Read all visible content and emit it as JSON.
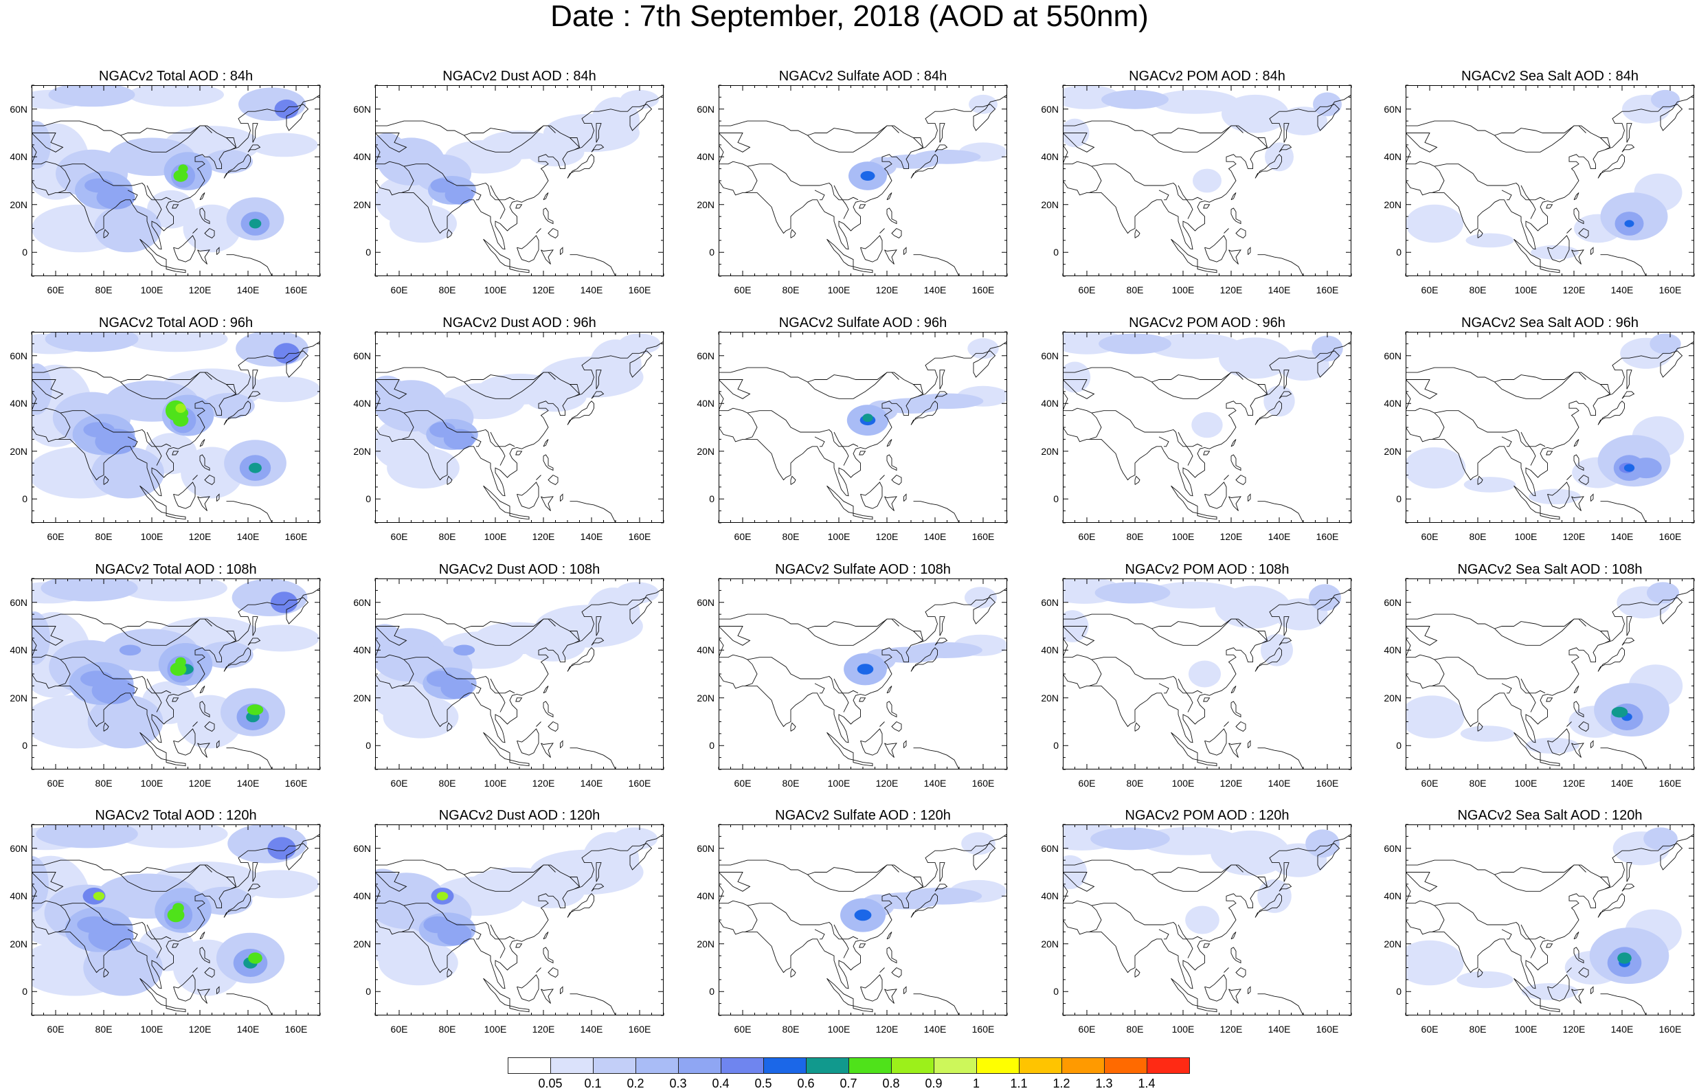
{
  "title": "Date : 7th September, 2018 (AOD at 550nm)",
  "lat_labels": [
    "60N",
    "40N",
    "20N",
    "0"
  ],
  "lon_labels": [
    "60E",
    "80E",
    "100E",
    "120E",
    "140E",
    "160E"
  ],
  "panels": [
    {
      "title": "NGACv2 Total AOD : 84h",
      "species": "total",
      "hour": "84h"
    },
    {
      "title": "NGACv2 Dust AOD : 84h",
      "species": "dust",
      "hour": "84h"
    },
    {
      "title": "NGACv2 Sulfate AOD : 84h",
      "species": "sulfate",
      "hour": "84h"
    },
    {
      "title": "NGACv2 POM AOD : 84h",
      "species": "pom",
      "hour": "84h"
    },
    {
      "title": "NGACv2 Sea Salt AOD : 84h",
      "species": "seasalt",
      "hour": "84h"
    },
    {
      "title": "NGACv2 Total AOD : 96h",
      "species": "total",
      "hour": "96h"
    },
    {
      "title": "NGACv2 Dust AOD : 96h",
      "species": "dust",
      "hour": "96h"
    },
    {
      "title": "NGACv2 Sulfate AOD : 96h",
      "species": "sulfate",
      "hour": "96h"
    },
    {
      "title": "NGACv2 POM AOD : 96h",
      "species": "pom",
      "hour": "96h"
    },
    {
      "title": "NGACv2 Sea Salt AOD : 96h",
      "species": "seasalt",
      "hour": "96h"
    },
    {
      "title": "NGACv2 Total AOD : 108h",
      "species": "total",
      "hour": "108h"
    },
    {
      "title": "NGACv2 Dust AOD : 108h",
      "species": "dust",
      "hour": "108h"
    },
    {
      "title": "NGACv2 Sulfate AOD : 108h",
      "species": "sulfate",
      "hour": "108h"
    },
    {
      "title": "NGACv2 POM AOD : 108h",
      "species": "pom",
      "hour": "108h"
    },
    {
      "title": "NGACv2 Sea Salt AOD : 108h",
      "species": "seasalt",
      "hour": "108h"
    },
    {
      "title": "NGACv2 Total AOD : 120h",
      "species": "total",
      "hour": "120h"
    },
    {
      "title": "NGACv2 Dust AOD : 120h",
      "species": "dust",
      "hour": "120h"
    },
    {
      "title": "NGACv2 Sulfate AOD : 120h",
      "species": "sulfate",
      "hour": "120h"
    },
    {
      "title": "NGACv2 POM AOD : 120h",
      "species": "pom",
      "hour": "120h"
    },
    {
      "title": "NGACv2 Sea Salt  AOD : 120h",
      "species": "seasalt",
      "hour": "120h"
    }
  ],
  "colorbar": {
    "colors": [
      "#ffffff",
      "#dbe2fb",
      "#c3cff8",
      "#a9bcf6",
      "#8fa6f3",
      "#6f85ef",
      "#1b67e8",
      "#11998d",
      "#4fe21a",
      "#9cf01a",
      "#cdf75a",
      "#ffff00",
      "#ffc400",
      "#ff9a00",
      "#ff6a00",
      "#ff2a14"
    ],
    "labels": [
      "0.05",
      "0.1",
      "0.2",
      "0.3",
      "0.4",
      "0.5",
      "0.6",
      "0.7",
      "0.8",
      "0.9",
      "1",
      "1.1",
      "1.2",
      "1.3",
      "1.4"
    ]
  },
  "colors": {
    "coastline": "#111111",
    "frame": "#000000"
  }
}
